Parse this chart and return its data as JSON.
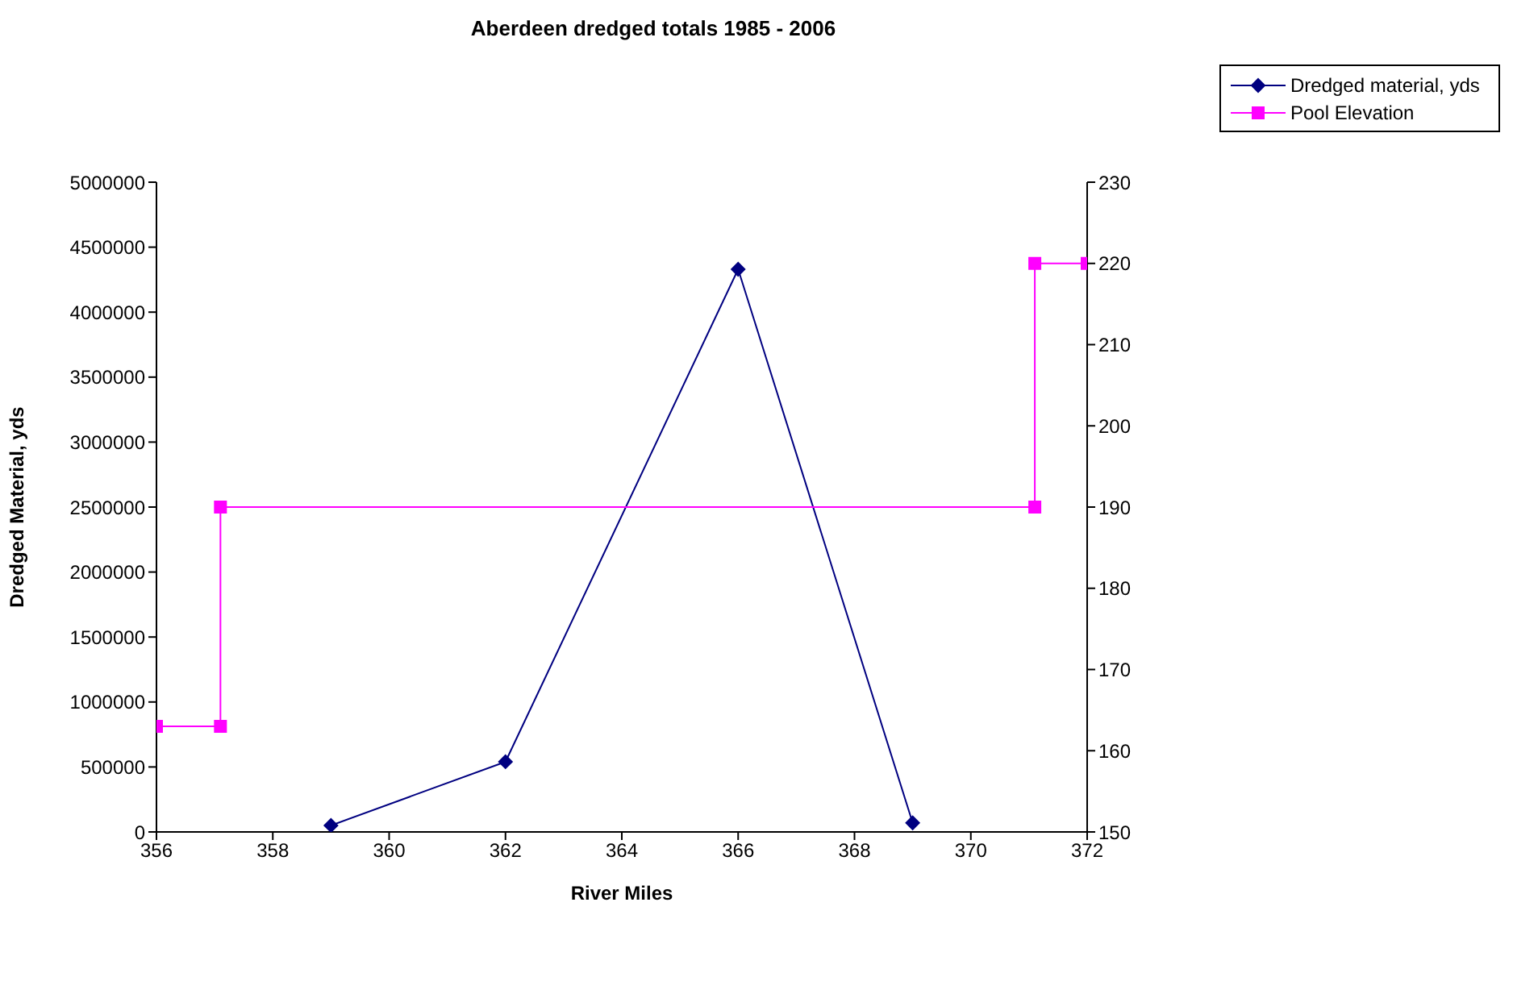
{
  "chart_data": {
    "type": "line",
    "title": "Aberdeen dredged totals 1985 - 2006",
    "xlabel": "River Miles",
    "ylabel": "Dredged Material, yds",
    "xlim": [
      356,
      372
    ],
    "xticks": [
      356,
      358,
      360,
      362,
      364,
      366,
      368,
      370,
      372
    ],
    "ylim": [
      0,
      5000000
    ],
    "yticks": [
      0,
      500000,
      1000000,
      1500000,
      2000000,
      2500000,
      3000000,
      3500000,
      4000000,
      4500000,
      5000000
    ],
    "y2lim": [
      150,
      230
    ],
    "y2ticks": [
      150,
      160,
      170,
      180,
      190,
      200,
      210,
      220,
      230
    ],
    "legend": "top right",
    "series": [
      {
        "name": "Dredged material, yds",
        "color": "#000080",
        "marker": "diamond",
        "x": [
          359,
          362,
          366,
          369
        ],
        "values": [
          50000,
          540000,
          4330000,
          70000
        ]
      },
      {
        "name": "Pool Elevation",
        "color": "#ff00ff",
        "marker": "square",
        "axis": "y2",
        "x": [
          356,
          357.1,
          357.1,
          371.1,
          371.1,
          372
        ],
        "values": [
          163,
          163,
          190,
          190,
          220,
          220
        ]
      }
    ]
  }
}
